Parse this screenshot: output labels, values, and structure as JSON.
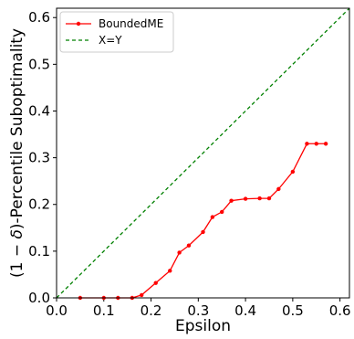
{
  "chart_data": {
    "type": "line",
    "title": "",
    "xlabel": "Epsilon",
    "ylabel_parts": [
      "(1 − ",
      "δ",
      ")-Percentile Suboptimality"
    ],
    "xlim": [
      0.0,
      0.62
    ],
    "ylim": [
      0.0,
      0.62
    ],
    "xticks": [
      0.0,
      0.1,
      0.2,
      0.3,
      0.4,
      0.5,
      0.6
    ],
    "yticks": [
      0.0,
      0.1,
      0.2,
      0.3,
      0.4,
      0.5,
      0.6
    ],
    "xtick_labels": [
      "0.0",
      "0.1",
      "0.2",
      "0.3",
      "0.4",
      "0.5",
      "0.6"
    ],
    "ytick_labels": [
      "0.0",
      "0.1",
      "0.2",
      "0.3",
      "0.4",
      "0.5",
      "0.6"
    ],
    "grid": false,
    "legend": "top-left",
    "series": [
      {
        "name": "BoundedME",
        "color": "#ff0000",
        "style": "solid",
        "marker": "dot",
        "x": [
          0.05,
          0.1,
          0.13,
          0.16,
          0.18,
          0.21,
          0.24,
          0.26,
          0.28,
          0.31,
          0.33,
          0.35,
          0.37,
          0.4,
          0.43,
          0.45,
          0.47,
          0.5,
          0.53,
          0.55,
          0.57
        ],
        "y": [
          0.0,
          0.0,
          0.0,
          0.0,
          0.006,
          0.032,
          0.058,
          0.097,
          0.112,
          0.141,
          0.173,
          0.184,
          0.208,
          0.212,
          0.213,
          0.213,
          0.233,
          0.27,
          0.33,
          0.33,
          0.33
        ]
      },
      {
        "name": "X=Y",
        "color": "#008000",
        "style": "dashed",
        "marker": "none",
        "x": [
          0.0,
          0.62
        ],
        "y": [
          0.0,
          0.62
        ]
      }
    ]
  }
}
